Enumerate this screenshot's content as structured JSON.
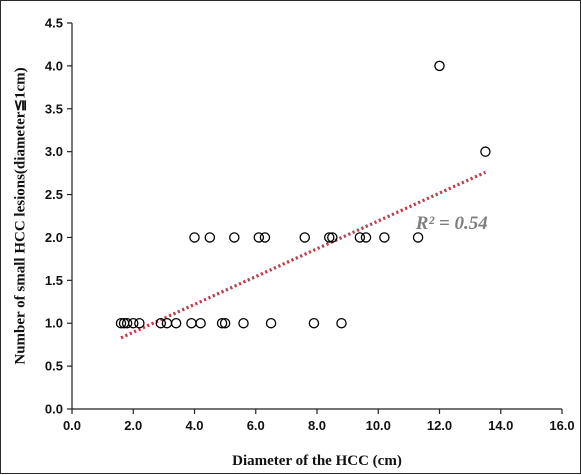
{
  "chart_data": {
    "type": "scatter",
    "title": "",
    "xlabel": "Diameter of the HCC  (cm)",
    "ylabel": "Number of small HCC lesions(diameter≦1cm)",
    "xlim": [
      0,
      16
    ],
    "ylim": [
      0,
      4.5
    ],
    "x_ticks": [
      "0.0",
      "2.0",
      "4.0",
      "6.0",
      "8.0",
      "10.0",
      "12.0",
      "14.0",
      "16.0"
    ],
    "y_ticks": [
      "0.0",
      "0.5",
      "1.0",
      "1.5",
      "2.0",
      "2.5",
      "3.0",
      "3.5",
      "4.0",
      "4.5"
    ],
    "grid": false,
    "legend": "none",
    "series": [
      {
        "marker": "open-circle",
        "color": "#000000",
        "points": [
          {
            "x": 1.6,
            "y": 1.0
          },
          {
            "x": 1.7,
            "y": 1.0
          },
          {
            "x": 1.8,
            "y": 1.0
          },
          {
            "x": 2.0,
            "y": 1.0
          },
          {
            "x": 2.2,
            "y": 1.0
          },
          {
            "x": 2.9,
            "y": 1.0
          },
          {
            "x": 3.1,
            "y": 1.0
          },
          {
            "x": 3.4,
            "y": 1.0
          },
          {
            "x": 3.9,
            "y": 1.0
          },
          {
            "x": 4.2,
            "y": 1.0
          },
          {
            "x": 4.9,
            "y": 1.0
          },
          {
            "x": 5.0,
            "y": 1.0
          },
          {
            "x": 5.6,
            "y": 1.0
          },
          {
            "x": 6.5,
            "y": 1.0
          },
          {
            "x": 7.9,
            "y": 1.0
          },
          {
            "x": 8.8,
            "y": 1.0
          },
          {
            "x": 4.0,
            "y": 2.0
          },
          {
            "x": 4.5,
            "y": 2.0
          },
          {
            "x": 5.3,
            "y": 2.0
          },
          {
            "x": 6.1,
            "y": 2.0
          },
          {
            "x": 6.3,
            "y": 2.0
          },
          {
            "x": 7.6,
            "y": 2.0
          },
          {
            "x": 8.4,
            "y": 2.0
          },
          {
            "x": 8.5,
            "y": 2.0
          },
          {
            "x": 9.4,
            "y": 2.0
          },
          {
            "x": 9.6,
            "y": 2.0
          },
          {
            "x": 10.2,
            "y": 2.0
          },
          {
            "x": 11.3,
            "y": 2.0
          },
          {
            "x": 12.0,
            "y": 4.0
          },
          {
            "x": 13.5,
            "y": 3.0
          }
        ]
      }
    ],
    "trendline": {
      "type": "linear",
      "style": "dotted",
      "color": "#c8383f",
      "dot_color": "#5a73b5",
      "x_start": 1.6,
      "y_start": 0.83,
      "x_end": 13.5,
      "y_end": 2.76
    },
    "annotation": "R² = 0.54",
    "annotation_position": {
      "x": 12.4,
      "y": 2.1
    }
  }
}
